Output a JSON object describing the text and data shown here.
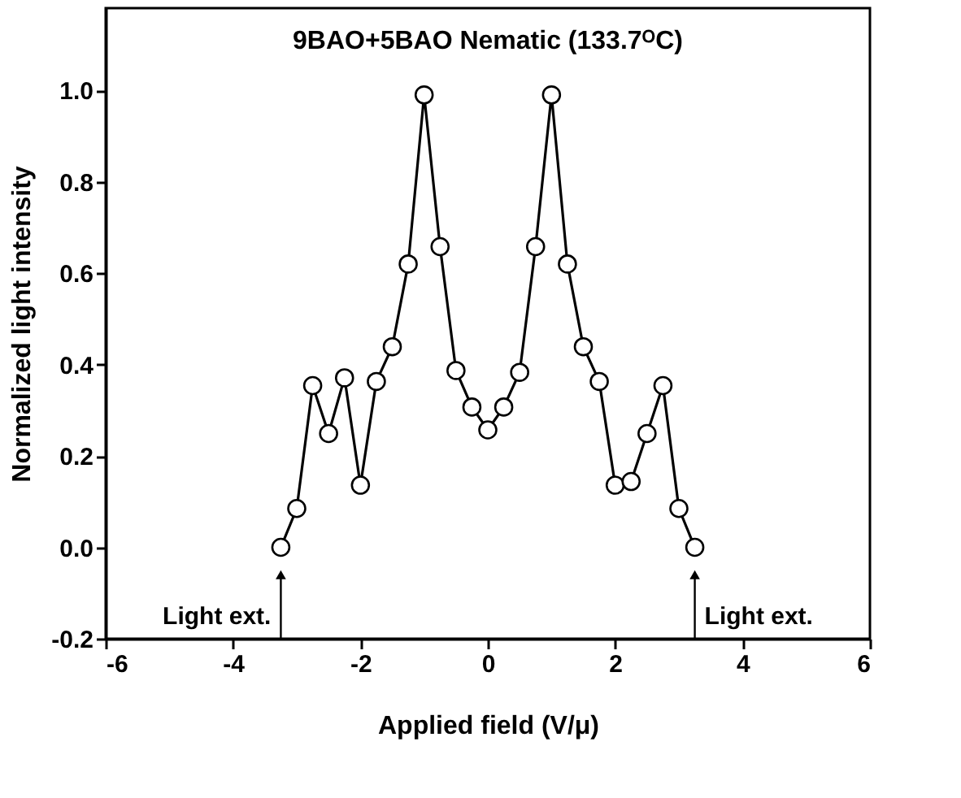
{
  "chart_data": {
    "type": "line",
    "title": "9BAO+5BAO Nematic (133.7ᴼC)",
    "xlabel": "Applied field (V/μ)",
    "ylabel": "Normalized light intensity",
    "x": [
      -3.25,
      -3.0,
      -2.75,
      -2.5,
      -2.25,
      -2.0,
      -1.75,
      -1.5,
      -1.25,
      -1.0,
      -0.75,
      -0.5,
      -0.25,
      0,
      0.25,
      0.5,
      0.75,
      1.0,
      1.25,
      1.5,
      1.75,
      2.0,
      2.25,
      2.5,
      2.75,
      3.0,
      3.25
    ],
    "series": [
      {
        "color": "#000000",
        "values": [
          0.0,
          0.085,
          0.354,
          0.249,
          0.371,
          0.136,
          0.363,
          0.439,
          0.62,
          0.99,
          0.658,
          0.387,
          0.307,
          0.257,
          0.307,
          0.383,
          0.658,
          0.99,
          0.62,
          0.439,
          0.363,
          0.136,
          0.144,
          0.249,
          0.354,
          0.085,
          0.0
        ]
      }
    ],
    "xlim": [
      -6,
      6
    ],
    "xticks": [
      -6,
      -4,
      -2,
      0,
      2,
      4,
      6
    ],
    "ylim": [
      -0.2,
      1.18
    ],
    "yticks": [
      {
        "value": -0.2,
        "label": "-0.2"
      },
      {
        "value": 0,
        "label": "0.0"
      },
      {
        "value": 0.2,
        "label": "0.2"
      },
      {
        "value": 0.4,
        "label": "0.4"
      },
      {
        "value": 0.6,
        "label": "0.6"
      },
      {
        "value": 0.8,
        "label": "0.8"
      },
      {
        "value": 1.0,
        "label": "1.0"
      }
    ],
    "annotations": [
      {
        "text": "Light ext.",
        "x": -3.25,
        "y": 0.0
      },
      {
        "text": "Light ext.",
        "x": 3.25,
        "y": 0.0
      }
    ],
    "marker": "circle",
    "line_style": "solid"
  }
}
